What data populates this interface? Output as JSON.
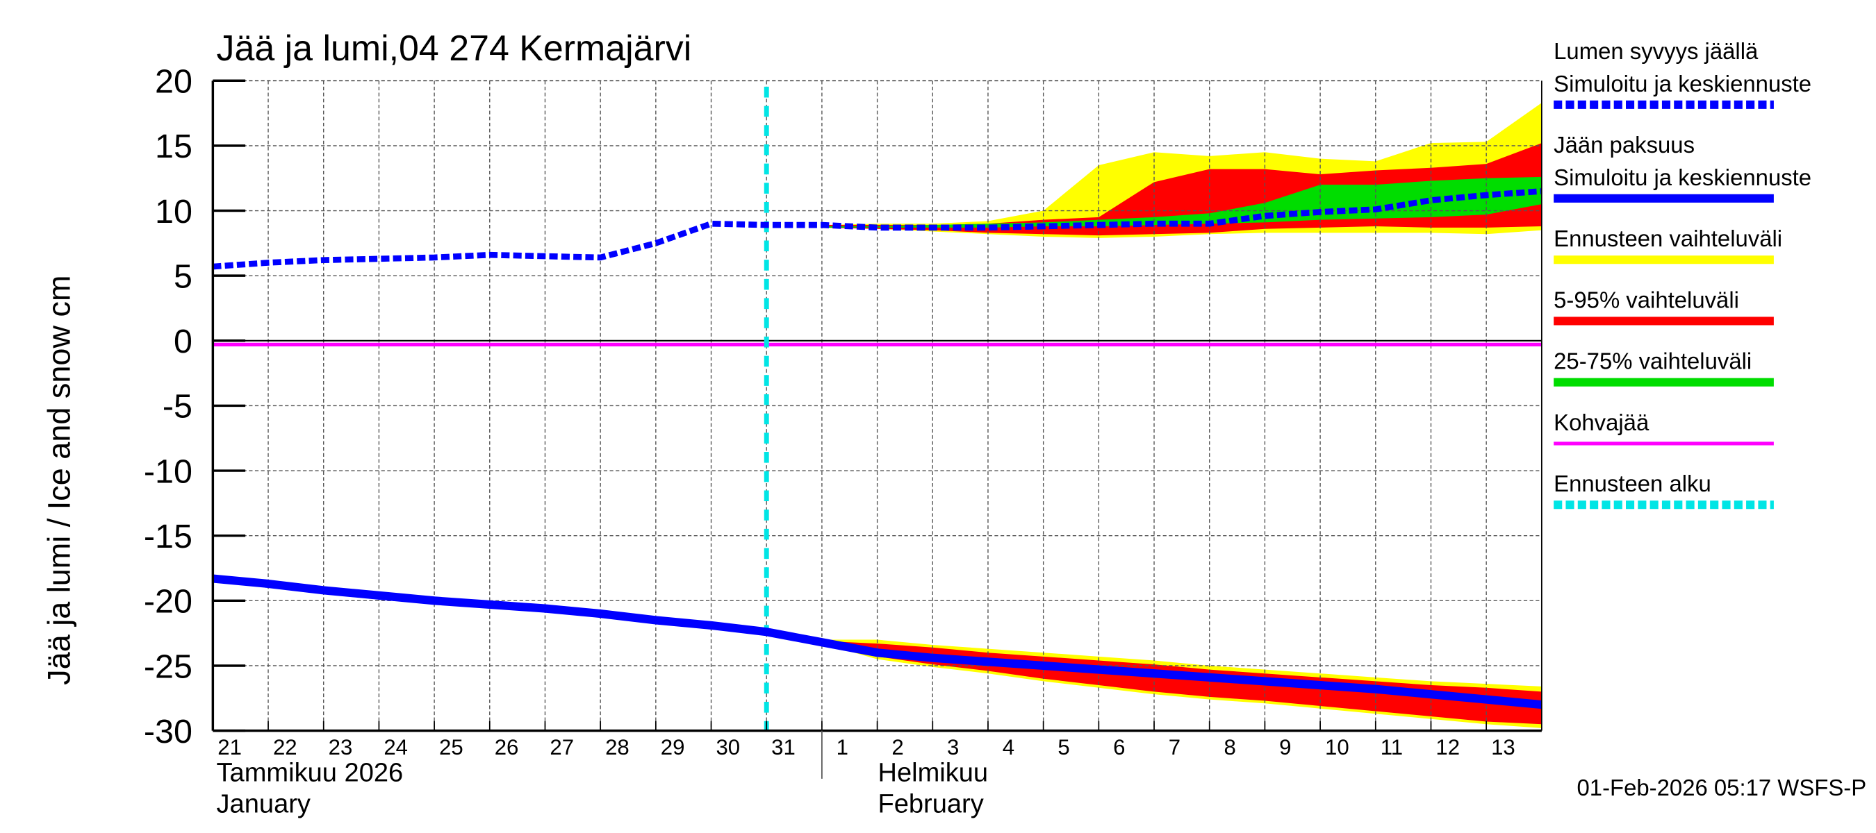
{
  "chart_data": {
    "type": "area",
    "title": "Jää ja lumi,04 274 Kermajärvi",
    "ylabel": "Jää ja lumi / Ice and snow    cm",
    "ylim": [
      -30,
      20
    ],
    "yticks": [
      "20",
      "15",
      "10",
      "5",
      "0",
      "-5",
      "-10",
      "-15",
      "-20",
      "-25",
      "-30"
    ],
    "grid": true,
    "legend_placement": "right",
    "x_start": "2026-01-21",
    "x_end": "2026-02-14",
    "x_tick_labels": [
      "21",
      "22",
      "23",
      "24",
      "25",
      "26",
      "27",
      "28",
      "29",
      "30",
      "31",
      "1",
      "2",
      "3",
      "4",
      "5",
      "6",
      "7",
      "8",
      "9",
      "10",
      "11",
      "12",
      "13"
    ],
    "month_labels": [
      {
        "fi": "Tammikuu  2026",
        "en": "January"
      },
      {
        "fi": "Helmikuu",
        "en": "February"
      }
    ],
    "forecast_start": "2026-01-31",
    "timestamp": "01-Feb-2026 05:17 WSFS-P",
    "colors": {
      "snow": "#0000ff",
      "ice": "#0000ff",
      "range": "#ffff00",
      "p5_95": "#ff0000",
      "p25_75": "#00dd00",
      "slush": "#ff00ff",
      "forecast_start": "#00e5e5"
    },
    "legend": [
      {
        "label": "Lumen syvyys jäällä",
        "label2": "Simuloitu ja keskiennuste",
        "color": "#0000ff",
        "style": "dashed"
      },
      {
        "label": "Jään paksuus",
        "label2": "Simuloitu ja keskiennuste",
        "color": "#0000ff",
        "style": "solid"
      },
      {
        "label": "Ennusteen vaihteluväli",
        "color": "#ffff00",
        "style": "solid"
      },
      {
        "label": "5-95% vaihteluväli",
        "color": "#ff0000",
        "style": "solid"
      },
      {
        "label": "25-75% vaihteluväli",
        "color": "#00dd00",
        "style": "solid"
      },
      {
        "label": "Kohvajää",
        "color": "#ff00ff",
        "style": "thin"
      },
      {
        "label": "Ennusteen alku",
        "color": "#00e5e5",
        "style": "dashed"
      }
    ],
    "dates": [
      "01-21",
      "01-22",
      "01-23",
      "01-24",
      "01-25",
      "01-26",
      "01-27",
      "01-28",
      "01-29",
      "01-30",
      "01-31",
      "02-01",
      "02-02",
      "02-03",
      "02-04",
      "02-05",
      "02-06",
      "02-07",
      "02-08",
      "02-09",
      "02-10",
      "02-11",
      "02-12",
      "02-13",
      "02-14"
    ],
    "snow": [
      5.7,
      6.0,
      6.2,
      6.3,
      6.4,
      6.6,
      6.5,
      6.4,
      7.5,
      9.0,
      8.9,
      8.9,
      8.7,
      8.7,
      8.7,
      8.8,
      8.9,
      9.0,
      9.0,
      9.6,
      9.9,
      10.1,
      10.8,
      11.2,
      11.5
    ],
    "ice": [
      -18.3,
      -18.7,
      -19.2,
      -19.6,
      -20.0,
      -20.3,
      -20.6,
      -21.0,
      -21.5,
      -21.9,
      -22.4,
      -23.2,
      -24.0,
      -24.4,
      -24.7,
      -25.0,
      -25.3,
      -25.6,
      -25.9,
      -26.2,
      -26.5,
      -26.8,
      -27.2,
      -27.6,
      -28.0
    ],
    "slush": -0.3,
    "band_dates": [
      "02-01",
      "02-02",
      "02-03",
      "02-04",
      "02-05",
      "02-06",
      "02-07",
      "02-08",
      "02-09",
      "02-10",
      "02-11",
      "02-12",
      "02-13",
      "02-14"
    ],
    "snow_bands": {
      "range_hi": [
        8.9,
        9.0,
        9.0,
        9.2,
        10.0,
        13.5,
        14.5,
        14.2,
        14.5,
        14.0,
        13.8,
        15.2,
        15.3,
        18.3
      ],
      "range_lo": [
        8.7,
        8.6,
        8.4,
        8.2,
        8.0,
        7.9,
        8.0,
        8.2,
        8.3,
        8.3,
        8.3,
        8.3,
        8.2,
        8.5
      ],
      "p95": [
        8.9,
        8.9,
        8.9,
        9.0,
        9.3,
        9.5,
        12.2,
        13.2,
        13.2,
        12.8,
        13.1,
        13.3,
        13.6,
        15.2
      ],
      "p5": [
        8.7,
        8.6,
        8.5,
        8.3,
        8.2,
        8.1,
        8.2,
        8.3,
        8.6,
        8.7,
        8.8,
        8.7,
        8.7,
        8.8
      ],
      "p75": [
        8.8,
        8.8,
        8.9,
        9.0,
        9.1,
        9.3,
        9.5,
        9.8,
        10.6,
        12.0,
        12.0,
        12.3,
        12.5,
        12.6
      ],
      "p25": [
        8.7,
        8.7,
        8.7,
        8.7,
        8.8,
        8.8,
        8.9,
        9.0,
        9.1,
        9.3,
        9.4,
        9.5,
        9.7,
        10.5
      ]
    },
    "ice_bands": {
      "range_hi": [
        -23.0,
        -23.0,
        -23.4,
        -23.7,
        -24.0,
        -24.3,
        -24.6,
        -25.0,
        -25.3,
        -25.6,
        -25.9,
        -26.2,
        -26.4,
        -26.6
      ],
      "range_lo": [
        -23.3,
        -24.5,
        -25.1,
        -25.6,
        -26.2,
        -26.7,
        -27.2,
        -27.6,
        -27.9,
        -28.3,
        -28.7,
        -29.1,
        -29.5,
        -29.8
      ],
      "p95": [
        -23.1,
        -23.3,
        -23.6,
        -24.0,
        -24.3,
        -24.6,
        -24.9,
        -25.3,
        -25.6,
        -25.9,
        -26.2,
        -26.5,
        -26.7,
        -27.0
      ],
      "p5": [
        -23.3,
        -24.3,
        -24.9,
        -25.4,
        -26.0,
        -26.5,
        -27.0,
        -27.4,
        -27.7,
        -28.1,
        -28.5,
        -28.9,
        -29.3,
        -29.5
      ],
      "p75": [
        -23.1,
        -23.8,
        -24.2,
        -24.5,
        -24.8,
        -25.1,
        -25.4,
        -25.7,
        -26.0,
        -26.3,
        -26.6,
        -26.9,
        -27.3,
        -27.7
      ],
      "p25": [
        -23.3,
        -24.2,
        -24.6,
        -24.9,
        -25.2,
        -25.5,
        -25.8,
        -26.1,
        -26.4,
        -26.7,
        -27.0,
        -27.3,
        -27.7,
        -28.2
      ]
    }
  }
}
